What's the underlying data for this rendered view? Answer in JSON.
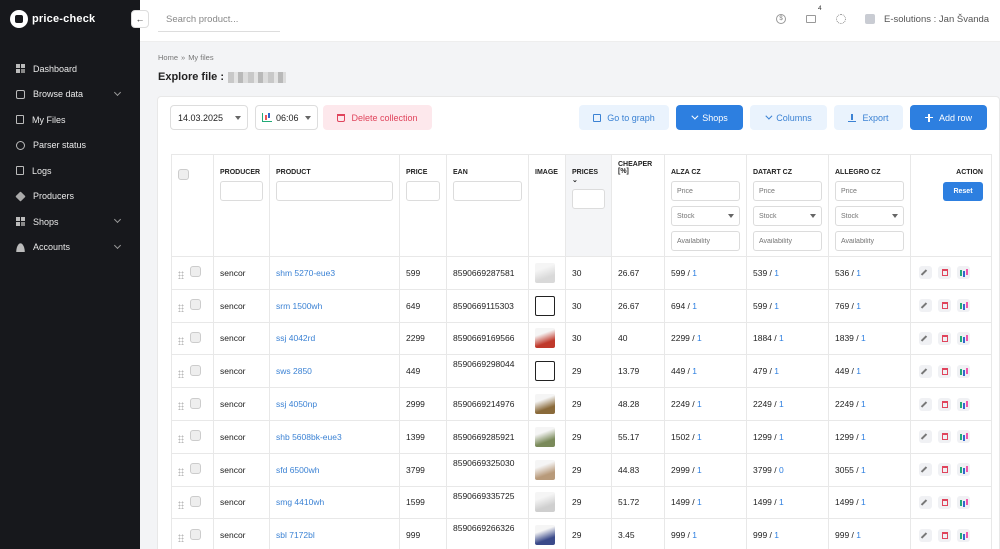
{
  "app": {
    "logo_text": "price-check"
  },
  "sidebar": {
    "items": [
      {
        "label": "Dashboard",
        "icon": "grid-icon",
        "chevron": false
      },
      {
        "label": "Browse data",
        "icon": "box-icon",
        "chevron": true
      },
      {
        "label": "My Files",
        "icon": "file-icon",
        "chevron": false
      },
      {
        "label": "Parser status",
        "icon": "circle-icon",
        "chevron": false
      },
      {
        "label": "Logs",
        "icon": "doc-icon",
        "chevron": false
      },
      {
        "label": "Producers",
        "icon": "cube-icon",
        "chevron": false
      },
      {
        "label": "Shops",
        "icon": "grid-icon",
        "chevron": true
      },
      {
        "label": "Accounts",
        "icon": "user-icon",
        "chevron": true
      }
    ]
  },
  "topbar": {
    "search_placeholder": "Search product...",
    "notification_count": "4",
    "user_name": "E-solutions : Jan Švanda"
  },
  "breadcrumb": {
    "home": "Home",
    "separator": "»",
    "current": "My files"
  },
  "page": {
    "title": "Explore file :"
  },
  "toolbar": {
    "date": "14.03.2025",
    "time": "06:06",
    "delete_label": "Delete collection",
    "graph_label": "Go to graph",
    "shops_label": "Shops",
    "columns_label": "Columns",
    "export_label": "Export",
    "add_label": "Add row"
  },
  "table": {
    "headers": {
      "producer": "PRODUCER",
      "product": "PRODUCT",
      "price": "PRICE",
      "ean": "EAN",
      "image": "IMAGE",
      "prices": "PRICES",
      "cheaper": "CHEAPER [%]",
      "alza": "ALZA CZ",
      "datart": "DATART CZ",
      "allegro": "ALLEGRO CZ",
      "action": "ACTION"
    },
    "shop_filter": {
      "price_placeholder": "Price",
      "stock_placeholder": "Stock",
      "availability_placeholder": "Availability"
    },
    "reset_label": "Reset",
    "rows": [
      {
        "producer": "sencor",
        "product": "shm 5270-eue3",
        "price": "599",
        "ean": "8590669287581",
        "prices": "30",
        "cheaper": "26.67",
        "alza_price": "599",
        "alza_count": "1",
        "datart_price": "539",
        "datart_count": "1",
        "allegro_price": "536",
        "allegro_count": "1"
      },
      {
        "producer": "sencor",
        "product": "srm 1500wh",
        "price": "649",
        "ean": "8590669115303",
        "prices": "30",
        "cheaper": "26.67",
        "alza_price": "694",
        "alza_count": "1",
        "datart_price": "599",
        "datart_count": "1",
        "allegro_price": "769",
        "allegro_count": "1"
      },
      {
        "producer": "sencor",
        "product": "ssj 4042rd",
        "price": "2299",
        "ean": "8590669169566",
        "prices": "30",
        "cheaper": "40",
        "alza_price": "2299",
        "alza_count": "1",
        "datart_price": "1884",
        "datart_count": "1",
        "allegro_price": "1839",
        "allegro_count": "1"
      },
      {
        "producer": "sencor",
        "product": "sws 2850",
        "price": "449",
        "ean": "8590669298044",
        "prices": "29",
        "cheaper": "13.79",
        "alza_price": "449",
        "alza_count": "1",
        "datart_price": "479",
        "datart_count": "1",
        "allegro_price": "449",
        "allegro_count": "1"
      },
      {
        "producer": "sencor",
        "product": "ssj 4050np",
        "price": "2999",
        "ean": "8590669214976",
        "prices": "29",
        "cheaper": "48.28",
        "alza_price": "2249",
        "alza_count": "1",
        "datart_price": "2249",
        "datart_count": "1",
        "allegro_price": "2249",
        "allegro_count": "1"
      },
      {
        "producer": "sencor",
        "product": "shb 5608bk-eue3",
        "price": "1399",
        "ean": "8590669285921",
        "prices": "29",
        "cheaper": "55.17",
        "alza_price": "1502",
        "alza_count": "1",
        "datart_price": "1299",
        "datart_count": "1",
        "allegro_price": "1299",
        "allegro_count": "1"
      },
      {
        "producer": "sencor",
        "product": "sfd 6500wh",
        "price": "3799",
        "ean": "8590669325030",
        "prices": "29",
        "cheaper": "44.83",
        "alza_price": "2999",
        "alza_count": "1",
        "datart_price": "3799",
        "datart_count": "0",
        "allegro_price": "3055",
        "allegro_count": "1"
      },
      {
        "producer": "sencor",
        "product": "smg 4410wh",
        "price": "1599",
        "ean": "8590669335725",
        "prices": "29",
        "cheaper": "51.72",
        "alza_price": "1499",
        "alza_count": "1",
        "datart_price": "1499",
        "datart_count": "1",
        "allegro_price": "1499",
        "allegro_count": "1"
      },
      {
        "producer": "sencor",
        "product": "sbl 7172bl",
        "price": "999",
        "ean": "8590669266326",
        "prices": "29",
        "cheaper": "3.45",
        "alza_price": "999",
        "alza_count": "1",
        "datart_price": "999",
        "datart_count": "1",
        "allegro_price": "999",
        "allegro_count": "1"
      }
    ]
  },
  "colors": {
    "sidebar_bg": "#17181c",
    "primary": "#2d7fe0",
    "danger": "#e0445c",
    "link": "#3b82d4"
  }
}
